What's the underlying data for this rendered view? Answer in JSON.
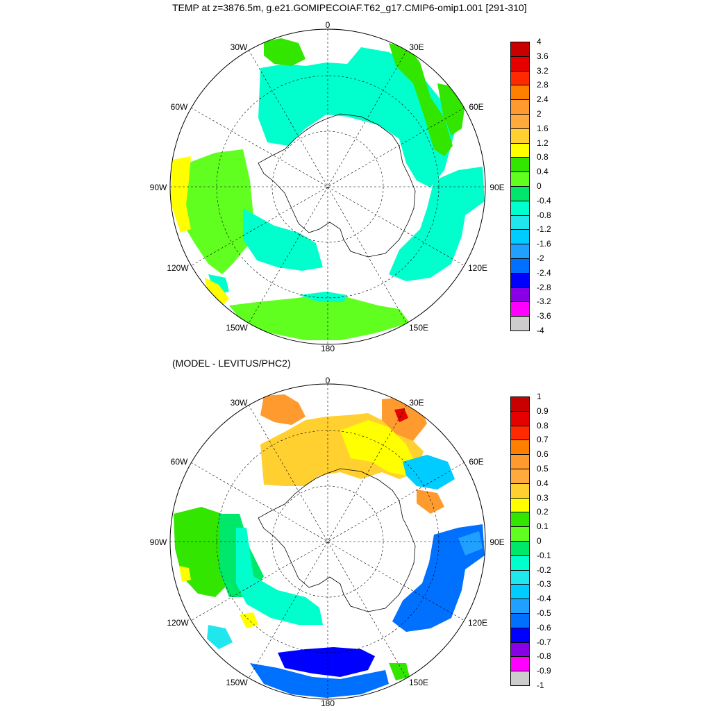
{
  "title": "TEMP at z=3876.5m, g.e21.GOMIPECOIAF.T62_g17.CMIP6-omip1.001 [291-310]",
  "subtitle": "(MODEL - LEVITUS/PHC2)",
  "longitude_labels": [
    "0",
    "30E",
    "60E",
    "90E",
    "120E",
    "150E",
    "180",
    "150W",
    "120W",
    "90W",
    "60W",
    "30W"
  ],
  "colorbar_top": {
    "labels": [
      "4",
      "3.6",
      "3.2",
      "2.8",
      "2.4",
      "2",
      "1.6",
      "1.2",
      "0.8",
      "0.4",
      "0",
      "-0.4",
      "-0.8",
      "-1.2",
      "-1.6",
      "-2",
      "-2.4",
      "-2.8",
      "-3.2",
      "-3.6",
      "-4"
    ],
    "colors": [
      "#c80000",
      "#e60000",
      "#ff2a00",
      "#ff8000",
      "#ff9a2e",
      "#ffaa3c",
      "#ffd030",
      "#ffff00",
      "#33e600",
      "#60ff20",
      "#00e86a",
      "#00ffcc",
      "#20e6ee",
      "#00ccff",
      "#20a0ff",
      "#0070ff",
      "#0000ff",
      "#8a00e6",
      "#ff00ff",
      "#cccccc",
      "#707070"
    ]
  },
  "colorbar_bottom": {
    "labels": [
      "1",
      "0.9",
      "0.8",
      "0.7",
      "0.6",
      "0.5",
      "0.4",
      "0.3",
      "0.2",
      "0.1",
      "0",
      "-0.1",
      "-0.2",
      "-0.3",
      "-0.4",
      "-0.5",
      "-0.6",
      "-0.7",
      "-0.8",
      "-0.9",
      "-1"
    ],
    "colors": [
      "#c80000",
      "#e60000",
      "#ff2a00",
      "#ff8000",
      "#ff9a2e",
      "#ffaa3c",
      "#ffd030",
      "#ffff00",
      "#33e600",
      "#60ff20",
      "#00e86a",
      "#00ffcc",
      "#20e6ee",
      "#00ccff",
      "#20a0ff",
      "#0070ff",
      "#0000ff",
      "#8a00e6",
      "#ff00ff",
      "#cccccc",
      "#707070"
    ]
  }
}
